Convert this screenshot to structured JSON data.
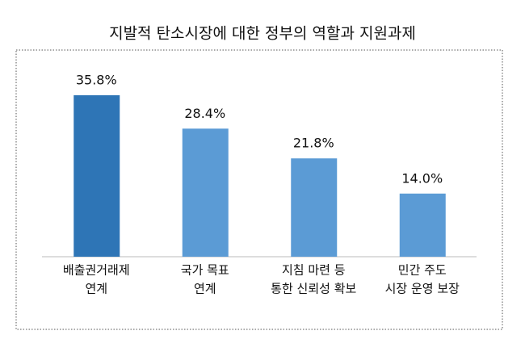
{
  "chart_data": {
    "type": "bar",
    "title": "지발적 탄소시장에 대한 정부의 역할과 지원과제",
    "categories": [
      [
        "배출권거래제",
        "연계"
      ],
      [
        "국가 목표",
        "연계"
      ],
      [
        "지침 마련 등",
        "통한 신뢰성 확보"
      ],
      [
        "민간 주도",
        "시장 운영 보장"
      ]
    ],
    "values": [
      35.8,
      28.4,
      21.8,
      14.0
    ],
    "value_labels": [
      "35.8%",
      "28.4%",
      "21.8%",
      "14.0%"
    ],
    "colors": [
      "#2e75b6",
      "#5b9bd5",
      "#5b9bd5",
      "#5b9bd5"
    ]
  }
}
